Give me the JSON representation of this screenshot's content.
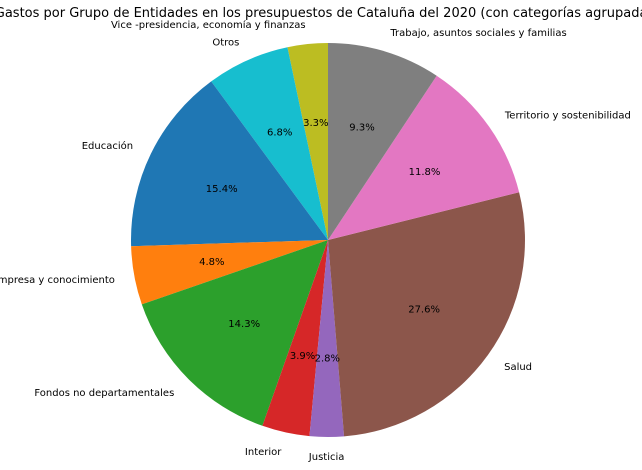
{
  "chart_data": {
    "type": "pie",
    "title": "Gastos por Grupo de Entidades en los presupuestos de Cataluña del 2020 (con categorías agrupadas)",
    "start_angle": 90,
    "direction": "counterclockwise",
    "slices": [
      {
        "label": "Vice -presidencia, economía y finanzas",
        "value": 3.3,
        "pct_text": "3.3%",
        "color": "#bcbd22"
      },
      {
        "label": "Otros",
        "value": 6.8,
        "pct_text": "6.8%",
        "color": "#17becf"
      },
      {
        "label": "Educación",
        "value": 15.4,
        "pct_text": "15.4%",
        "color": "#1f77b4"
      },
      {
        "label": "Empresa y conocimiento",
        "value": 4.8,
        "pct_text": "4.8%",
        "color": "#ff7f0e"
      },
      {
        "label": "Fondos no departamentales",
        "value": 14.3,
        "pct_text": "14.3%",
        "color": "#2ca02c"
      },
      {
        "label": "Interior",
        "value": 3.9,
        "pct_text": "3.9%",
        "color": "#d62728"
      },
      {
        "label": "Justicia",
        "value": 2.8,
        "pct_text": "2.8%",
        "color": "#9467bd"
      },
      {
        "label": "Salud",
        "value": 27.6,
        "pct_text": "27.6%",
        "color": "#8c564b"
      },
      {
        "label": "Territorio y sostenibilidad",
        "value": 11.8,
        "pct_text": "11.8%",
        "color": "#e377c2"
      },
      {
        "label": "Trabajo, asuntos sociales y familias",
        "value": 9.3,
        "pct_text": "9.3%",
        "color": "#7f7f7f"
      }
    ]
  }
}
